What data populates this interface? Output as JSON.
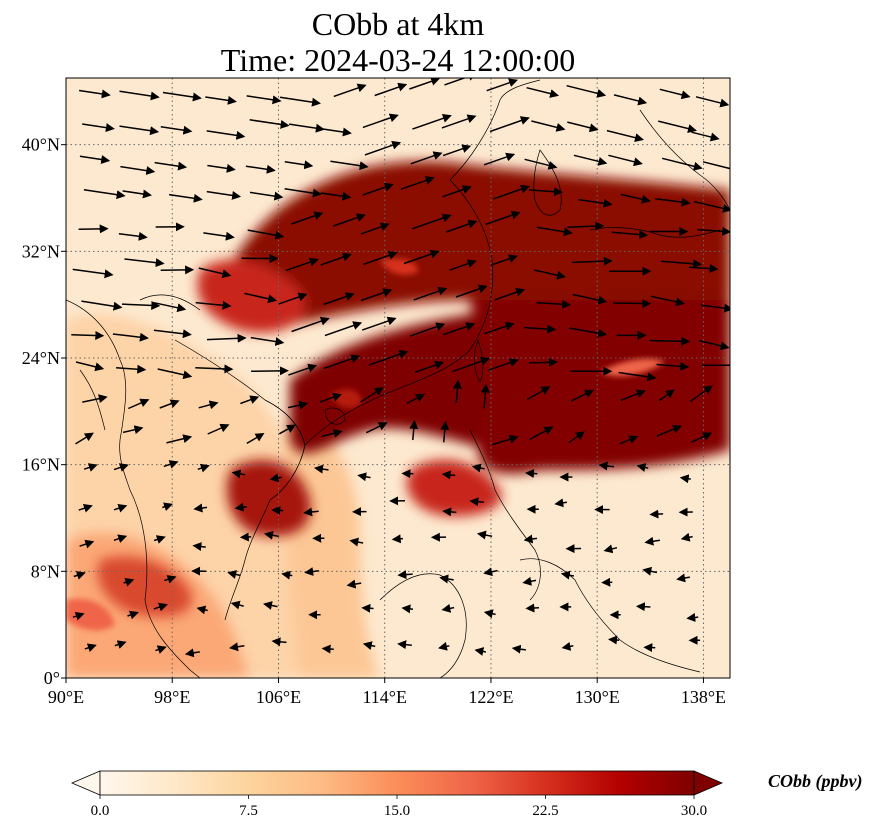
{
  "title": {
    "line1": "CObb at 4km",
    "line2": "Time: 2024-03-24 12:00:00"
  },
  "map": {
    "projection": "PlateCarree",
    "lon_range": [
      90,
      140
    ],
    "lat_range": [
      0,
      45
    ],
    "gridlines": "dotted gray",
    "x_ticks": [
      {
        "value": 90,
        "label": "90°E"
      },
      {
        "value": 98,
        "label": "98°E"
      },
      {
        "value": 106,
        "label": "106°E"
      },
      {
        "value": 114,
        "label": "114°E"
      },
      {
        "value": 122,
        "label": "122°E"
      },
      {
        "value": 130,
        "label": "130°E"
      },
      {
        "value": 138,
        "label": "138°E"
      }
    ],
    "y_ticks": [
      {
        "value": 0,
        "label": "0°"
      },
      {
        "value": 8,
        "label": "8°N"
      },
      {
        "value": 16,
        "label": "16°N"
      },
      {
        "value": 24,
        "label": "24°N"
      },
      {
        "value": 32,
        "label": "32°N"
      },
      {
        "value": 40,
        "label": "40°N"
      }
    ],
    "field_colormap": "OrRd",
    "wind_vectors": "black arrows, westerly flow in the north, easterly in the south"
  },
  "colorbar": {
    "label": "CObb (ppbv)",
    "min": 0.0,
    "max": 30.0,
    "extend": "both",
    "ticks": [
      {
        "value": 0.0,
        "label": "0.0"
      },
      {
        "value": 7.5,
        "label": "7.5"
      },
      {
        "value": 15.0,
        "label": "15.0"
      },
      {
        "value": 22.5,
        "label": "22.5"
      },
      {
        "value": 30.0,
        "label": "30.0"
      }
    ],
    "colors": [
      "#fff7ec",
      "#fee8c8",
      "#fdd49e",
      "#fdbb84",
      "#fc8d59",
      "#ef6548",
      "#d7301f",
      "#b30000",
      "#7f0000"
    ]
  }
}
